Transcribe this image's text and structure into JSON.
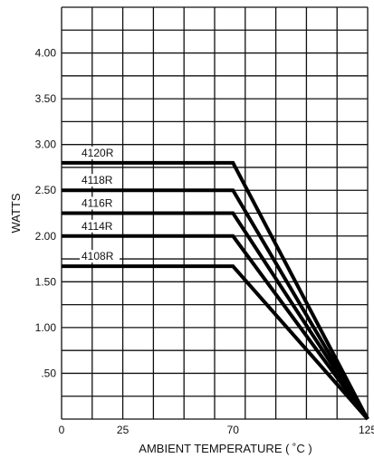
{
  "chart_data": {
    "type": "line",
    "title": "",
    "xlabel": "AMBIENT TEMPERATURE ( ˚C )",
    "ylabel": "WATTS",
    "xlim": [
      0,
      125
    ],
    "ylim": [
      0,
      4.5
    ],
    "grid": true,
    "x_ticks": [
      {
        "value": 0,
        "label": "0"
      },
      {
        "value": 25,
        "label": "25"
      },
      {
        "value": 70,
        "label": "70"
      },
      {
        "value": 125,
        "label": "125"
      }
    ],
    "y_ticks": [
      {
        "value": 0.5,
        "label": ".50"
      },
      {
        "value": 1.0,
        "label": "1.00"
      },
      {
        "value": 1.5,
        "label": "1.50"
      },
      {
        "value": 2.0,
        "label": "2.00"
      },
      {
        "value": 2.5,
        "label": "2.50"
      },
      {
        "value": 3.0,
        "label": "3.00"
      },
      {
        "value": 3.5,
        "label": "3.50"
      },
      {
        "value": 4.0,
        "label": "4.00"
      }
    ],
    "series": [
      {
        "name": "4120R",
        "points": [
          [
            0,
            2.8
          ],
          [
            70,
            2.8
          ],
          [
            125,
            0.0
          ]
        ]
      },
      {
        "name": "4118R",
        "points": [
          [
            0,
            2.5
          ],
          [
            70,
            2.5
          ],
          [
            125,
            0.0
          ]
        ]
      },
      {
        "name": "4116R",
        "points": [
          [
            0,
            2.25
          ],
          [
            70,
            2.25
          ],
          [
            125,
            0.0
          ]
        ]
      },
      {
        "name": "4114R",
        "points": [
          [
            0,
            2.0
          ],
          [
            70,
            2.0
          ],
          [
            125,
            0.0
          ]
        ]
      },
      {
        "name": "4108R",
        "points": [
          [
            0,
            1.67
          ],
          [
            70,
            1.67
          ],
          [
            125,
            0.0
          ]
        ]
      }
    ]
  },
  "colors": {
    "grid": "#111111",
    "series": "#000000",
    "text": "#111111",
    "background": "#ffffff"
  }
}
